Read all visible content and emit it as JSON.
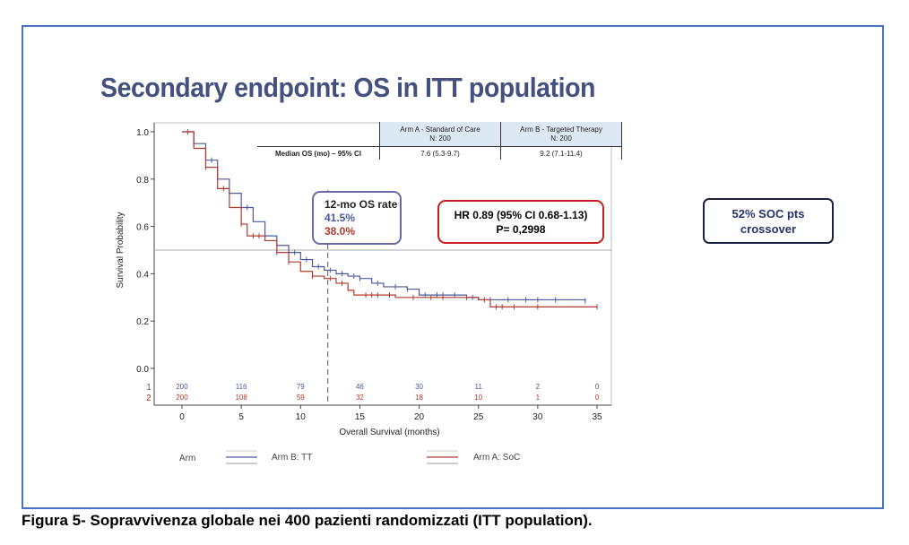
{
  "title": "Secondary endpoint: OS in ITT population",
  "caption": "Figura 5- Sopravvivenza globale nei 400 pazienti randomizzati (ITT population).",
  "crossover_box": {
    "line1": "52% SOC pts",
    "line2": "crossover"
  },
  "os12_box": {
    "label": "12-mo OS rate",
    "arm_b": "41.5%",
    "arm_a": "38.0%"
  },
  "hr_box": {
    "line1": "HR 0.89 (95% CI 0.68-1.13)",
    "line2": "P= 0,2998"
  },
  "median_table": {
    "headers": [
      {
        "name": "Arm A - Standard of Care",
        "n": "N: 200"
      },
      {
        "name": "Arm B - Targeted Therapy",
        "n": "N: 200"
      }
    ],
    "row_label": "Median OS (mo) – 95% CI",
    "values": [
      "7.6 (5.3-9.7)",
      "9.2 (7.1-11.4)"
    ]
  },
  "colors": {
    "arm_b": "#4a5a9c",
    "arm_a": "#b03a2e",
    "title": "#44507f"
  },
  "chart_data": {
    "type": "line",
    "title": "",
    "xlabel": "Overall Survival (months)",
    "ylabel": "Survival Probability",
    "xlim": [
      0,
      35
    ],
    "ylim": [
      0,
      1
    ],
    "xticks": [
      "0",
      "5",
      "10",
      "15",
      "20",
      "25",
      "30",
      "35"
    ],
    "yticks": [
      "0.0",
      "0.2",
      "0.4",
      "0.6",
      "0.8",
      "1.0"
    ],
    "reference_hline": 0.5,
    "reference_vline": 12.3,
    "series": [
      {
        "name": "Arm B: TT",
        "arm_code": "1",
        "color": "#4a5a9c",
        "x": [
          0,
          1,
          2,
          3,
          4,
          5,
          6,
          7,
          8,
          9,
          10,
          11,
          12,
          13,
          14,
          15,
          16,
          17,
          19,
          20,
          24,
          25,
          34
        ],
        "y": [
          1.0,
          0.95,
          0.88,
          0.8,
          0.74,
          0.68,
          0.62,
          0.56,
          0.52,
          0.49,
          0.46,
          0.43,
          0.415,
          0.4,
          0.39,
          0.38,
          0.36,
          0.345,
          0.335,
          0.31,
          0.3,
          0.29,
          0.285
        ],
        "censored": [
          1,
          2.5,
          4,
          5.5,
          7,
          9.5,
          10.5,
          11.5,
          12.5,
          13.5,
          14.5,
          15,
          16.5,
          18,
          19,
          20.5,
          21.5,
          22,
          23,
          24.5,
          26,
          27.5,
          29,
          30,
          31.5,
          34
        ],
        "at_risk": [
          "200",
          "116",
          "79",
          "46",
          "30",
          "11",
          "2",
          "0"
        ]
      },
      {
        "name": "Arm A: SoC",
        "arm_code": "2",
        "color": "#b03a2e",
        "x": [
          0,
          1,
          2,
          3,
          4,
          5,
          5.5,
          7,
          8,
          9,
          10,
          11,
          12,
          13,
          14,
          14.5,
          18,
          25,
          26,
          35
        ],
        "y": [
          1.0,
          0.93,
          0.85,
          0.76,
          0.68,
          0.61,
          0.56,
          0.54,
          0.49,
          0.45,
          0.41,
          0.39,
          0.38,
          0.36,
          0.33,
          0.31,
          0.3,
          0.29,
          0.26,
          0.26
        ],
        "censored": [
          0.5,
          2,
          3.5,
          5,
          6,
          6.5,
          8,
          9,
          11,
          12.5,
          13.5,
          15.5,
          16,
          16.5,
          17.5,
          19.5,
          21,
          22,
          24,
          25.5,
          26.5,
          27,
          28,
          30,
          35
        ],
        "at_risk": [
          "200",
          "108",
          "59",
          "32",
          "18",
          "10",
          "1",
          "0"
        ]
      }
    ],
    "legend": {
      "title": "Arm",
      "placement": "bottom"
    }
  }
}
